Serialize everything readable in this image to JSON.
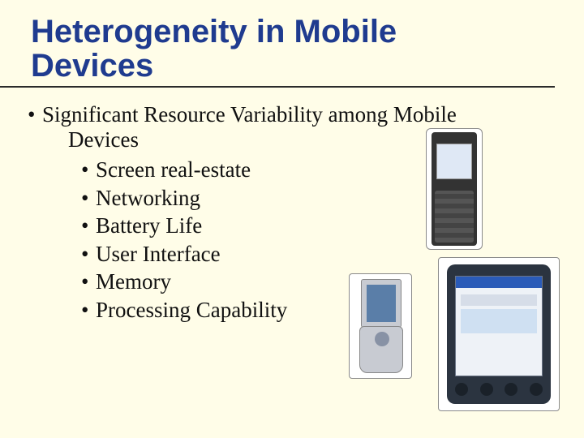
{
  "title_line1": "Heterogeneity in Mobile",
  "title_line2": "Devices",
  "main_bullet_line1": "Significant Resource Variability among Mobile",
  "main_bullet_line2": "Devices",
  "sub_bullets": [
    "Screen real-estate",
    "Networking",
    "Battery Life",
    "User Interface",
    "Memory",
    "Processing Capability"
  ],
  "colors": {
    "background": "#fffde8",
    "title": "#1f3b8f",
    "text": "#111111",
    "rule": "#2b2b2b"
  },
  "fontsize": {
    "title": 40,
    "body": 27
  }
}
